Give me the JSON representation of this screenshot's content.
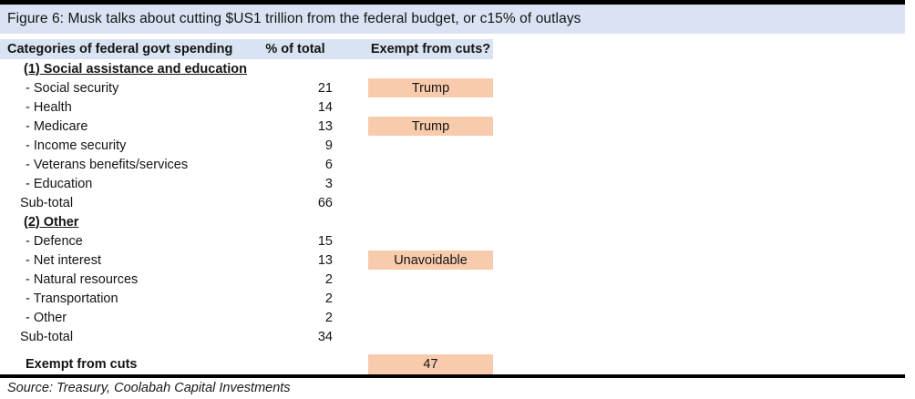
{
  "figure": {
    "title": "Figure 6: Musk talks about cutting $US1 trillion from the federal budget, or c15% of outlays",
    "source": "Source: Treasury, Coolabah Capital Investments"
  },
  "colors": {
    "title_bar_bg": "#dae3f3",
    "header_bg": "#d8e4f1",
    "badge_bg": "#f8cbad",
    "rule": "#000000"
  },
  "table": {
    "headers": [
      "Categories of federal govt spending",
      "% of total",
      "Exempt from cuts?"
    ],
    "rows": [
      {
        "type": "section",
        "label": "(1) Social assistance and education"
      },
      {
        "type": "item",
        "label": "- Social security",
        "value": 21,
        "badge": "Trump"
      },
      {
        "type": "item",
        "label": "- Health",
        "value": 14
      },
      {
        "type": "item",
        "label": "- Medicare",
        "value": 13,
        "badge": "Trump"
      },
      {
        "type": "item",
        "label": "- Income security",
        "value": 9
      },
      {
        "type": "item",
        "label": "- Veterans benefits/services",
        "value": 6
      },
      {
        "type": "item",
        "label": "- Education",
        "value": 3
      },
      {
        "type": "subtotal",
        "label": "Sub-total",
        "value": 66
      },
      {
        "type": "section",
        "label": "(2) Other"
      },
      {
        "type": "item",
        "label": "- Defence",
        "value": 15
      },
      {
        "type": "item",
        "label": "- Net interest",
        "value": 13,
        "badge": "Unavoidable"
      },
      {
        "type": "item",
        "label": "- Natural resources",
        "value": 2
      },
      {
        "type": "item",
        "label": "- Transportation",
        "value": 2
      },
      {
        "type": "item",
        "label": "- Other",
        "value": 2
      },
      {
        "type": "subtotal",
        "label": "Sub-total",
        "value": 34
      },
      {
        "type": "total",
        "label": "Exempt from cuts",
        "badge": 47
      }
    ]
  }
}
